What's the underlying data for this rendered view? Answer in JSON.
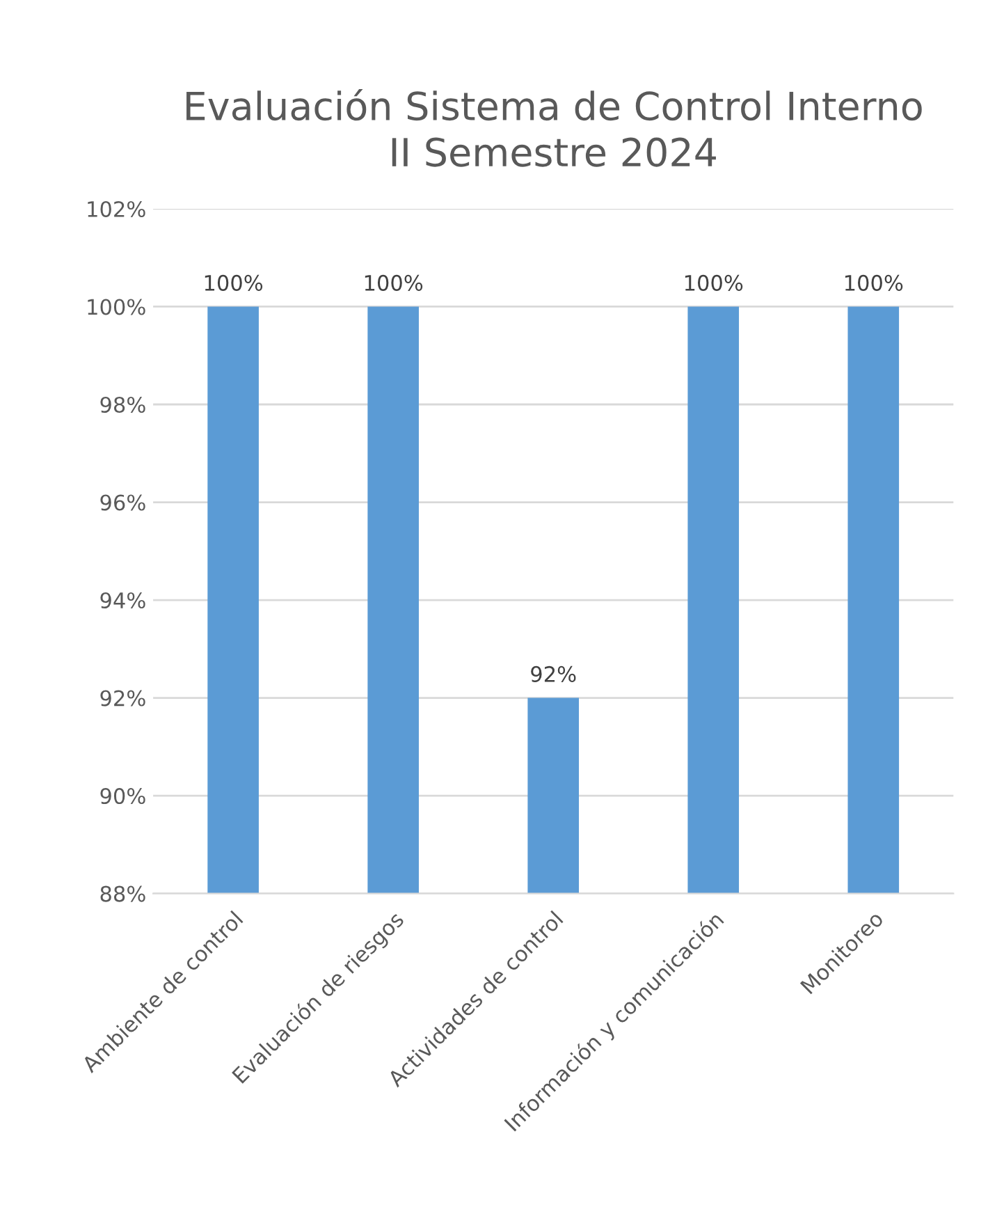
{
  "chart_data": {
    "type": "bar",
    "title": "Evaluación Sistema de Control Interno\nII Semestre 2024",
    "categories": [
      "Ambiente de control",
      "Evaluación de riesgos",
      "Actividades de control",
      "Información y comunicación",
      "Monitoreo"
    ],
    "values": [
      100,
      100,
      92,
      100,
      100
    ],
    "color": "#5b9bd5",
    "value_labels": [
      "100%",
      "100%",
      "92%",
      "100%",
      "100%"
    ],
    "ylim": [
      88,
      102
    ],
    "yticks": [
      {
        "value": 88,
        "label": "88%"
      },
      {
        "value": 90,
        "label": "90%"
      },
      {
        "value": 92,
        "label": "92%"
      },
      {
        "value": 94,
        "label": "94%"
      },
      {
        "value": 96,
        "label": "96%"
      },
      {
        "value": 98,
        "label": "98%"
      },
      {
        "value": 100,
        "label": "100%"
      },
      {
        "value": 102,
        "label": "102%"
      }
    ],
    "grid": "y",
    "legend": false
  }
}
